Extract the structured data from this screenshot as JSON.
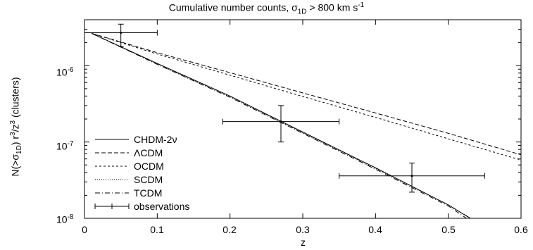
{
  "chart_data": {
    "type": "line",
    "title": "Cumulative number counts, σ1D > 800 km s-1",
    "title_parts": {
      "a": "Cumulative number counts, σ",
      "b": "1D",
      "c": " > 800 km s",
      "d": "-1"
    },
    "xlabel": "z",
    "ylabel": "N(>σ1D) r3/z3 (clusters)",
    "ylabel_parts": {
      "a": "N(>σ",
      "b": "1D",
      "c": ") r",
      "d": "3",
      "e": "/z",
      "f": "3",
      "g": " (clusters)"
    },
    "xlim": [
      0,
      0.6
    ],
    "ylim": [
      1e-08,
      4e-06
    ],
    "yscale": "log",
    "x_ticks": [
      "0",
      "0.1",
      "0.2",
      "0.3",
      "0.4",
      "0.5",
      "0.6"
    ],
    "y_ticks": [
      {
        "value": 1e-08,
        "base": "10",
        "exp": "-8"
      },
      {
        "value": 1e-07,
        "base": "10",
        "exp": "-7"
      },
      {
        "value": 1e-06,
        "base": "10",
        "exp": "-6"
      }
    ],
    "legend_position": "lower-left",
    "series": [
      {
        "name": "CHDM-2ν",
        "style": "solid",
        "x": [
          0.01,
          0.1,
          0.2,
          0.3,
          0.4,
          0.5,
          0.53
        ],
        "y": [
          2.65e-06,
          1.07e-06,
          4e-07,
          1.35e-07,
          4.6e-08,
          1.5e-08,
          1e-08
        ]
      },
      {
        "name": "ΛCDM",
        "style": "dashed",
        "x": [
          0.01,
          0.1,
          0.2,
          0.3,
          0.4,
          0.5,
          0.6
        ],
        "y": [
          2.65e-06,
          1.48e-06,
          8.1e-07,
          4.4e-07,
          2.4e-07,
          1.3e-07,
          6.8e-08
        ]
      },
      {
        "name": "OCDM",
        "style": "dotted",
        "x": [
          0.01,
          0.1,
          0.2,
          0.3,
          0.4,
          0.5,
          0.6
        ],
        "y": [
          2.65e-06,
          1.42e-06,
          7.5e-07,
          3.95e-07,
          2.1e-07,
          1.1e-07,
          5.8e-08
        ]
      },
      {
        "name": "SCDM",
        "style": "fine-dotted",
        "x": [
          0.01,
          0.1,
          0.2,
          0.3,
          0.4,
          0.5,
          0.53
        ],
        "y": [
          2.65e-06,
          1.05e-06,
          3.9e-07,
          1.32e-07,
          4.5e-08,
          1.5e-08,
          1.02e-08
        ]
      },
      {
        "name": "TCDM",
        "style": "dash-dot",
        "x": [
          0.01,
          0.1,
          0.2,
          0.3,
          0.4,
          0.5,
          0.525
        ],
        "y": [
          2.65e-06,
          1.04e-06,
          3.85e-07,
          1.3e-07,
          4.4e-08,
          1.45e-08,
          1e-08
        ]
      }
    ],
    "observations": {
      "name": "observations",
      "points": [
        {
          "x": 0.05,
          "y": 2.7e-06,
          "xerr": [
            0.0,
            0.1
          ],
          "yerr": [
            1.8e-06,
            3.5e-06
          ]
        },
        {
          "x": 0.27,
          "y": 1.85e-07,
          "xerr": [
            0.19,
            0.35
          ],
          "yerr": [
            1e-07,
            3e-07
          ]
        },
        {
          "x": 0.45,
          "y": 3.6e-08,
          "xerr": [
            0.35,
            0.55
          ],
          "yerr": [
            2.2e-08,
            5.3e-08
          ]
        }
      ]
    }
  }
}
